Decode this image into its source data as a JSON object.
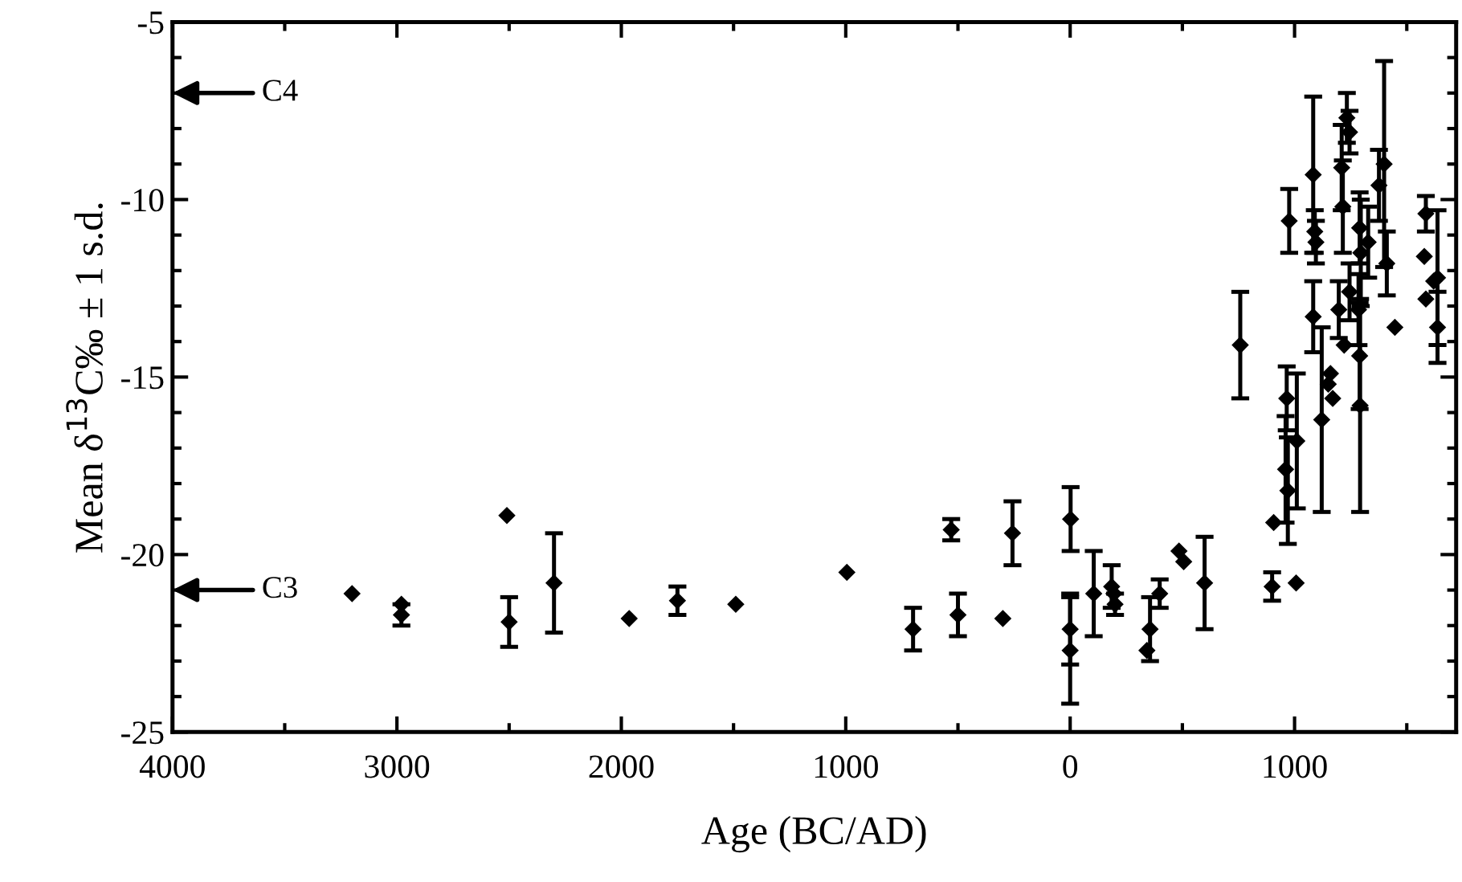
{
  "chart_data": {
    "type": "scatter",
    "xlabel": "Age (BC/AD)",
    "ylabel": "Mean δ$^{13}$C‰ ± 1 s.d.",
    "xlim": [
      -4000,
      1720
    ],
    "ylim": [
      -25,
      -5
    ],
    "xticks": [
      {
        "value": -4000,
        "label": "4000"
      },
      {
        "value": -3500,
        "label": null
      },
      {
        "value": -3000,
        "label": "3000"
      },
      {
        "value": -2500,
        "label": null
      },
      {
        "value": -2000,
        "label": "2000"
      },
      {
        "value": -1500,
        "label": null
      },
      {
        "value": -1000,
        "label": "1000"
      },
      {
        "value": -500,
        "label": null
      },
      0,
      {
        "value": 500,
        "label": null
      },
      1000,
      {
        "value": 1500,
        "label": null
      }
    ],
    "yticks": [
      -5,
      {
        "value": -6,
        "label": null
      },
      {
        "value": -7,
        "label": null
      },
      {
        "value": -8,
        "label": null
      },
      {
        "value": -9,
        "label": null
      },
      -10,
      {
        "value": -11,
        "label": null
      },
      {
        "value": -12,
        "label": null
      },
      {
        "value": -13,
        "label": null
      },
      {
        "value": -14,
        "label": null
      },
      -15,
      {
        "value": -16,
        "label": null
      },
      {
        "value": -17,
        "label": null
      },
      {
        "value": -18,
        "label": null
      },
      {
        "value": -19,
        "label": null
      },
      -20,
      {
        "value": -21,
        "label": null
      },
      {
        "value": -22,
        "label": null
      },
      {
        "value": -23,
        "label": null
      },
      {
        "value": -24,
        "label": null
      },
      -25
    ],
    "marker": "diamond",
    "grid": false,
    "legend": false,
    "annotations": [
      "C4",
      "C3"
    ],
    "series": [
      {
        "color": "#000000",
        "x": [
          -3200,
          -2980,
          -2980,
          -2510,
          -2500,
          -2300,
          -1965,
          -1750,
          -1490,
          -995,
          -700,
          -500,
          -300,
          -530,
          -257,
          2,
          0,
          0,
          105,
          185,
          195,
          200,
          342,
          356,
          399,
          485,
          506,
          599,
          758,
          900,
          907,
          1007,
          976,
          965,
          960,
          970,
          1010,
          1083,
          1090,
          1095,
          1083,
          1121,
          1150,
          1160,
          1170,
          1233,
          1245,
          1210,
          1215,
          1197,
          1221,
          1245,
          1290,
          1295,
          1285,
          1290,
          1292,
          1328,
          1376,
          1399,
          1411,
          1447,
          1585,
          1578,
          1585,
          1637,
          1620,
          1637
        ],
        "values": [
          -21.1,
          -21.4,
          -21.7,
          -18.9,
          -21.9,
          -20.8,
          -21.8,
          -21.3,
          -21.4,
          -20.5,
          -22.1,
          -21.7,
          -21.8,
          -19.3,
          -19.4,
          -19.0,
          -22.1,
          -22.7,
          -21.1,
          -20.9,
          -21.1,
          -21.4,
          -22.7,
          -22.1,
          -21.1,
          -19.9,
          -20.2,
          -20.8,
          -14.1,
          -20.9,
          -19.1,
          -20.8,
          -10.6,
          -15.6,
          -17.6,
          -18.2,
          -16.8,
          -9.3,
          -10.9,
          -11.2,
          -13.3,
          -16.2,
          -15.2,
          -14.9,
          -15.6,
          -7.7,
          -8.1,
          -9.1,
          -10.2,
          -13.1,
          -14.1,
          -12.6,
          -10.8,
          -11.5,
          -13.1,
          -14.4,
          -15.8,
          -11.2,
          -9.6,
          -9.0,
          -11.8,
          -13.6,
          -10.4,
          -11.6,
          -12.8,
          -12.2,
          -12.3,
          -13.6
        ],
        "errors": [
          null,
          null,
          0.3,
          null,
          0.7,
          1.4,
          null,
          0.4,
          null,
          null,
          0.6,
          0.6,
          null,
          0.3,
          0.9,
          0.9,
          1.0,
          1.5,
          1.2,
          0.6,
          null,
          0.3,
          null,
          0.9,
          0.4,
          null,
          null,
          1.3,
          1.5,
          0.4,
          null,
          null,
          0.9,
          0.9,
          1.5,
          1.5,
          1.9,
          2.2,
          0.6,
          0.6,
          1.0,
          2.6,
          null,
          null,
          null,
          0.7,
          0.6,
          1.2,
          1.3,
          0.8,
          null,
          0.8,
          1.0,
          1.5,
          1.0,
          1.5,
          3.0,
          1.0,
          1.0,
          2.9,
          0.9,
          null,
          0.5,
          null,
          null,
          1.9,
          null,
          1.0
        ]
      }
    ]
  }
}
